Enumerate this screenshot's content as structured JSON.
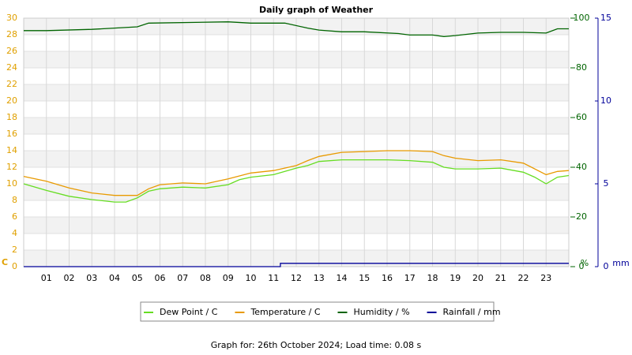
{
  "chart_data": {
    "type": "line",
    "title": "Daily graph of Weather",
    "footer": "Graph for: 26th October 2024; Load time: 0.08 s",
    "grid": true,
    "xlim": [
      0,
      24
    ],
    "xticks": [
      {
        "value": 1,
        "label": "01"
      },
      {
        "value": 2,
        "label": "02"
      },
      {
        "value": 3,
        "label": "03"
      },
      {
        "value": 4,
        "label": "04"
      },
      {
        "value": 5,
        "label": "05"
      },
      {
        "value": 6,
        "label": "06"
      },
      {
        "value": 7,
        "label": "07"
      },
      {
        "value": 8,
        "label": "08"
      },
      {
        "value": 9,
        "label": "09"
      },
      {
        "value": 10,
        "label": "10"
      },
      {
        "value": 11,
        "label": "11"
      },
      {
        "value": 12,
        "label": "12"
      },
      {
        "value": 13,
        "label": "13"
      },
      {
        "value": 14,
        "label": "14"
      },
      {
        "value": 15,
        "label": "15"
      },
      {
        "value": 16,
        "label": "16"
      },
      {
        "value": 17,
        "label": "17"
      },
      {
        "value": 18,
        "label": "18"
      },
      {
        "value": 19,
        "label": "19"
      },
      {
        "value": 20,
        "label": "20"
      },
      {
        "value": 21,
        "label": "21"
      },
      {
        "value": 22,
        "label": "22"
      },
      {
        "value": 23,
        "label": "23"
      }
    ],
    "ylim": [
      0,
      30
    ],
    "yticks": [
      0,
      2,
      4,
      6,
      8,
      10,
      12,
      14,
      16,
      18,
      20,
      22,
      24,
      26,
      28,
      30
    ],
    "y_unit": "C",
    "y_color": "#e0a000",
    "y2lim": [
      0,
      100
    ],
    "y2ticks": [
      0,
      20,
      40,
      60,
      80,
      100
    ],
    "y2_unit": "%",
    "y2_color": "#006400",
    "y3lim": [
      0,
      15
    ],
    "y3ticks": [
      0,
      5,
      10,
      15
    ],
    "y3_unit": "mm",
    "y3_color": "#000099",
    "series": [
      {
        "name": "Dew Point / C",
        "color": "#66dd22",
        "axis": "y",
        "x": [
          0,
          1,
          2,
          3,
          4,
          4.5,
          5,
          5.5,
          6,
          7,
          8,
          9,
          9.5,
          10,
          11,
          12,
          12.5,
          13,
          14,
          15,
          16,
          17,
          18,
          18.5,
          19,
          20,
          21,
          22,
          22.5,
          23,
          23.5,
          24
        ],
        "values": [
          10.0,
          9.2,
          8.5,
          8.1,
          7.8,
          7.8,
          8.3,
          9.1,
          9.4,
          9.6,
          9.5,
          9.9,
          10.5,
          10.8,
          11.1,
          11.9,
          12.2,
          12.7,
          12.9,
          12.9,
          12.9,
          12.8,
          12.6,
          12.0,
          11.8,
          11.8,
          11.9,
          11.4,
          10.8,
          10.0,
          10.8,
          11.0
        ]
      },
      {
        "name": "Temperature / C",
        "color": "#e89a00",
        "axis": "y",
        "x": [
          0,
          1,
          2,
          3,
          4,
          5,
          5.5,
          6,
          7,
          8,
          9,
          10,
          11,
          12,
          12.5,
          13,
          14,
          15,
          16,
          17,
          18,
          18.5,
          19,
          20,
          21,
          22,
          23,
          23.5,
          24
        ],
        "values": [
          10.9,
          10.3,
          9.5,
          8.9,
          8.6,
          8.6,
          9.4,
          9.9,
          10.1,
          10.0,
          10.6,
          11.3,
          11.6,
          12.2,
          12.8,
          13.3,
          13.8,
          13.9,
          14.0,
          14.0,
          13.9,
          13.4,
          13.1,
          12.8,
          12.9,
          12.5,
          11.1,
          11.5,
          11.6
        ]
      },
      {
        "name": "Humidity / %",
        "color": "#006400",
        "axis": "y2",
        "x": [
          0,
          1,
          3,
          5,
          5.5,
          9,
          10,
          11.5,
          12.5,
          13,
          14,
          15,
          16.5,
          17,
          18,
          18.5,
          19,
          20,
          21,
          22,
          23,
          23.5,
          24
        ],
        "values": [
          95,
          95,
          95.5,
          96.5,
          98,
          98.5,
          98,
          98,
          96,
          95.2,
          94.5,
          94.5,
          93.8,
          93.2,
          93.2,
          92.6,
          93,
          94,
          94.3,
          94.3,
          94,
          95.7,
          95.7
        ]
      },
      {
        "name": "Rainfall / mm",
        "color": "#000099",
        "axis": "y3",
        "x": [
          0,
          11.3,
          11.3,
          24
        ],
        "values": [
          0,
          0,
          0.2,
          0.2
        ]
      }
    ]
  }
}
